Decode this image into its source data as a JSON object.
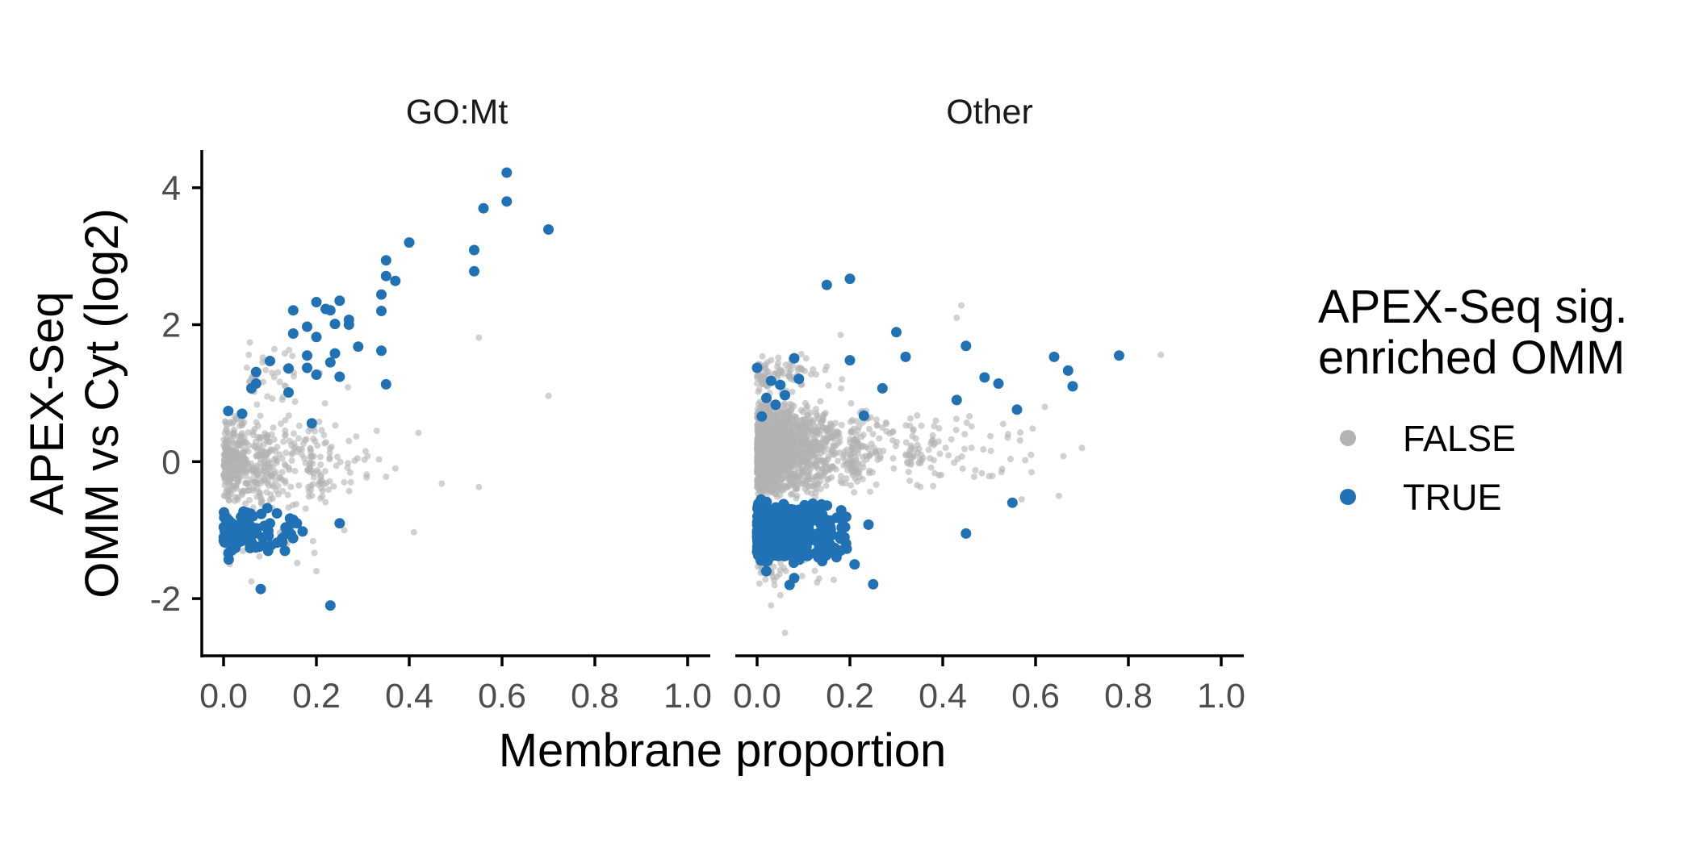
{
  "chart_data": {
    "type": "scatter",
    "facets": [
      "GO:Mt",
      "Other"
    ],
    "xlabel": "Membrane proportion",
    "ylabel_lines": [
      "APEX-Seq",
      "OMM vs Cyt (log2)"
    ],
    "xlim": [
      0,
      1
    ],
    "ylim": [
      -2.8,
      4.55
    ],
    "x_ticks": [
      0,
      0.2,
      0.4,
      0.6,
      0.8,
      1.0
    ],
    "x_tick_labels": [
      "0.0",
      "0.2",
      "0.4",
      "0.6",
      "0.8",
      "1.0"
    ],
    "y_ticks": [
      -2,
      0,
      2,
      4
    ],
    "y_tick_labels": [
      "-2",
      "0",
      "2",
      "4"
    ],
    "grid": false,
    "legend": {
      "title_lines": [
        "APEX-Seq sig.",
        "enriched OMM"
      ],
      "position": "right",
      "entries": [
        {
          "label": "FALSE",
          "color": "#b3b3b3"
        },
        {
          "label": "TRUE",
          "color": "#2171b5"
        }
      ]
    },
    "series": [
      {
        "name": "FALSE",
        "color": "#b3b3b3",
        "panels": {
          "GO:Mt": {
            "points": [
              [
                0.55,
                1.81
              ],
              [
                0.7,
                0.96
              ],
              [
                0.42,
                0.42
              ],
              [
                0.47,
                -0.32
              ],
              [
                0.55,
                -0.37
              ],
              [
                0.41,
                -1.03
              ],
              [
                0.35,
                -0.22
              ],
              [
                0.31,
                0.08
              ],
              [
                0.27,
                0.3
              ],
              [
                0.26,
                -0.3
              ],
              [
                0.33,
                0.45
              ],
              [
                0.37,
                -0.1
              ],
              [
                0.06,
                -1.75
              ],
              [
                0.2,
                -1.6
              ],
              [
                0.26,
                -1.0
              ]
            ],
            "clusters": [
              {
                "x": [
                  0.0,
                  0.25
                ],
                "y": [
                  -0.75,
                  0.75
                ],
                "n": 460
              },
              {
                "x": [
                  0.05,
                  0.3
                ],
                "y": [
                  0.75,
                  1.8
                ],
                "n": 40
              },
              {
                "x": [
                  0.0,
                  0.22
                ],
                "y": [
                  -1.6,
                  -0.75
                ],
                "n": 30
              },
              {
                "x": [
                  0.18,
                  0.35
                ],
                "y": [
                  -0.7,
                  0.6
                ],
                "n": 60
              }
            ]
          },
          "Other": {
            "points": [
              [
                0.87,
                1.56
              ],
              [
                0.44,
                2.28
              ],
              [
                0.43,
                2.1
              ],
              [
                0.62,
                0.8
              ],
              [
                0.7,
                0.2
              ],
              [
                0.54,
                0.35
              ],
              [
                0.65,
                -0.5
              ],
              [
                0.57,
                -0.55
              ],
              [
                0.18,
                1.85
              ],
              [
                0.06,
                -2.5
              ],
              [
                0.03,
                -2.1
              ],
              [
                0.05,
                -1.95
              ],
              [
                0.66,
                0.08
              ],
              [
                0.59,
                0.1
              ],
              [
                0.53,
                0.55
              ]
            ],
            "clusters": [
              {
                "x": [
                  0.0,
                  0.2
                ],
                "y": [
                  -0.55,
                  0.9
                ],
                "n": 1800
              },
              {
                "x": [
                  0.2,
                  0.32
                ],
                "y": [
                  -0.5,
                  0.9
                ],
                "n": 120
              },
              {
                "x": [
                  0.32,
                  0.62
                ],
                "y": [
                  -0.5,
                  0.9
                ],
                "n": 90
              },
              {
                "x": [
                  0.0,
                  0.2
                ],
                "y": [
                  0.9,
                  1.6
                ],
                "n": 90
              },
              {
                "x": [
                  0.0,
                  0.2
                ],
                "y": [
                  -1.9,
                  -1.0
                ],
                "n": 60
              }
            ]
          }
        }
      },
      {
        "name": "TRUE",
        "color": "#2171b5",
        "panels": {
          "GO:Mt": {
            "points": [
              [
                0.61,
                4.22
              ],
              [
                0.61,
                3.8
              ],
              [
                0.56,
                3.7
              ],
              [
                0.7,
                3.39
              ],
              [
                0.4,
                3.2
              ],
              [
                0.54,
                3.09
              ],
              [
                0.35,
                2.94
              ],
              [
                0.35,
                2.71
              ],
              [
                0.37,
                2.64
              ],
              [
                0.54,
                2.78
              ],
              [
                0.34,
                2.44
              ],
              [
                0.34,
                2.2
              ],
              [
                0.25,
                2.35
              ],
              [
                0.2,
                2.33
              ],
              [
                0.22,
                2.23
              ],
              [
                0.23,
                2.21
              ],
              [
                0.15,
                2.21
              ],
              [
                0.27,
                2.07
              ],
              [
                0.24,
                2.01
              ],
              [
                0.27,
                2.0
              ],
              [
                0.18,
                1.97
              ],
              [
                0.15,
                1.87
              ],
              [
                0.2,
                1.82
              ],
              [
                0.29,
                1.68
              ],
              [
                0.34,
                1.62
              ],
              [
                0.24,
                1.58
              ],
              [
                0.18,
                1.55
              ],
              [
                0.23,
                1.45
              ],
              [
                0.1,
                1.47
              ],
              [
                0.25,
                1.24
              ],
              [
                0.2,
                1.27
              ],
              [
                0.18,
                1.37
              ],
              [
                0.14,
                1.36
              ],
              [
                0.07,
                1.31
              ],
              [
                0.07,
                1.14
              ],
              [
                0.06,
                1.07
              ],
              [
                0.35,
                1.13
              ],
              [
                0.14,
                1.01
              ],
              [
                0.01,
                0.74
              ],
              [
                0.04,
                0.7
              ],
              [
                0.19,
                0.56
              ],
              [
                0.23,
                -2.1
              ],
              [
                0.08,
                -1.86
              ],
              [
                0.25,
                -0.9
              ],
              [
                0.15,
                -0.85
              ],
              [
                0.1,
                -0.9
              ]
            ],
            "clusters": [
              {
                "x": [
                  0.0,
                  0.2
                ],
                "y": [
                  -1.5,
                  -0.6
                ],
                "n": 95
              }
            ]
          },
          "Other": {
            "points": [
              [
                0.15,
                2.58
              ],
              [
                0.2,
                2.67
              ],
              [
                0.3,
                1.89
              ],
              [
                0.32,
                1.53
              ],
              [
                0.45,
                1.69
              ],
              [
                0.49,
                1.23
              ],
              [
                0.52,
                1.14
              ],
              [
                0.64,
                1.53
              ],
              [
                0.67,
                1.33
              ],
              [
                0.68,
                1.1
              ],
              [
                0.78,
                1.55
              ],
              [
                0.2,
                1.48
              ],
              [
                0.27,
                1.07
              ],
              [
                0.43,
                0.9
              ],
              [
                0.56,
                0.76
              ],
              [
                0.23,
                0.67
              ],
              [
                0.08,
                1.51
              ],
              [
                0.0,
                1.37
              ],
              [
                0.09,
                1.21
              ],
              [
                0.03,
                1.18
              ],
              [
                0.05,
                1.12
              ],
              [
                0.02,
                0.93
              ],
              [
                0.04,
                0.83
              ],
              [
                0.06,
                0.97
              ],
              [
                0.01,
                0.66
              ],
              [
                0.55,
                -0.6
              ],
              [
                0.45,
                -1.05
              ],
              [
                0.25,
                -1.79
              ],
              [
                0.24,
                -0.92
              ],
              [
                0.18,
                -1.3
              ],
              [
                0.21,
                -1.5
              ],
              [
                0.07,
                -1.8
              ],
              [
                0.02,
                -1.6
              ],
              [
                0.08,
                -1.7
              ]
            ],
            "clusters": [
              {
                "x": [
                  0.0,
                  0.21
                ],
                "y": [
                  -1.5,
                  -0.55
                ],
                "n": 520
              }
            ]
          }
        }
      }
    ]
  }
}
